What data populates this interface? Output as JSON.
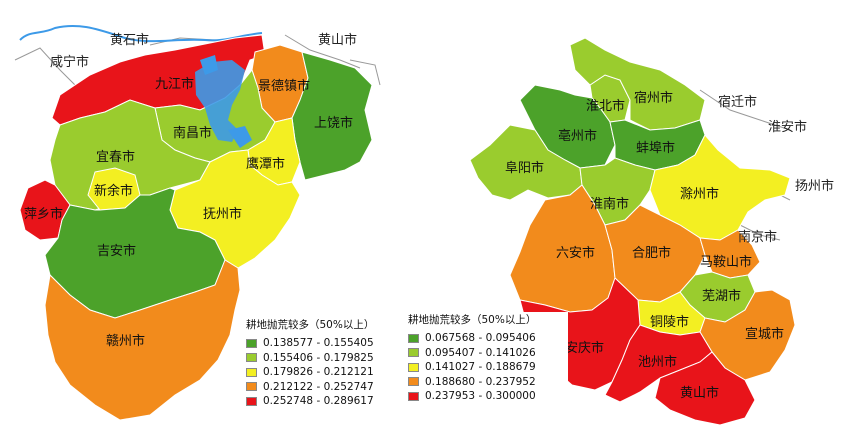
{
  "jiangxi": {
    "outside_labels": [
      "黄石市",
      "黄山市",
      "咸宁市"
    ],
    "regions": [
      {
        "name": "九江市",
        "class": 4
      },
      {
        "name": "景德镇市",
        "class": 3
      },
      {
        "name": "上饶市",
        "class": 0
      },
      {
        "name": "南昌市",
        "class": 1
      },
      {
        "name": "宜春市",
        "class": 1
      },
      {
        "name": "鹰潭市",
        "class": 2
      },
      {
        "name": "新余市",
        "class": 2
      },
      {
        "name": "抚州市",
        "class": 2
      },
      {
        "name": "萍乡市",
        "class": 4
      },
      {
        "name": "吉安市",
        "class": 0
      },
      {
        "name": "赣州市",
        "class": 3
      }
    ],
    "legend": {
      "title": "耕地抛荒较多（50%以上）",
      "classes": [
        "0.138577 - 0.155405",
        "0.155406 - 0.179825",
        "0.179826 - 0.212121",
        "0.212122 - 0.252747",
        "0.252748 - 0.289617"
      ]
    }
  },
  "anhui": {
    "outside_labels": [
      "宿迁市",
      "淮安市",
      "扬州市",
      "南京市"
    ],
    "regions": [
      {
        "name": "淮北市",
        "class": 1
      },
      {
        "name": "宿州市",
        "class": 1
      },
      {
        "name": "亳州市",
        "class": 0
      },
      {
        "name": "阜阳市",
        "class": 1
      },
      {
        "name": "蚌埠市",
        "class": 0
      },
      {
        "name": "淮南市",
        "class": 1
      },
      {
        "name": "滁州市",
        "class": 2
      },
      {
        "name": "六安市",
        "class": 3
      },
      {
        "name": "合肥市",
        "class": 3
      },
      {
        "name": "马鞍山市",
        "class": 3
      },
      {
        "name": "芜湖市",
        "class": 1
      },
      {
        "name": "铜陵市",
        "class": 2
      },
      {
        "name": "宣城市",
        "class": 3
      },
      {
        "name": "安庆市",
        "class": 4
      },
      {
        "name": "池州市",
        "class": 4
      },
      {
        "name": "黄山市",
        "class": 4
      }
    ],
    "legend": {
      "title": "耕地抛荒较多（50%以上）",
      "classes": [
        "0.067568 - 0.095406",
        "0.095407 - 0.141026",
        "0.141027 - 0.188679",
        "0.188680 - 0.237952",
        "0.237953 - 0.300000"
      ]
    }
  },
  "colors": [
    "#4ca22a",
    "#9acc2e",
    "#f3ef22",
    "#f28b1c",
    "#e8141a"
  ],
  "water_color": "#3d9ae8"
}
